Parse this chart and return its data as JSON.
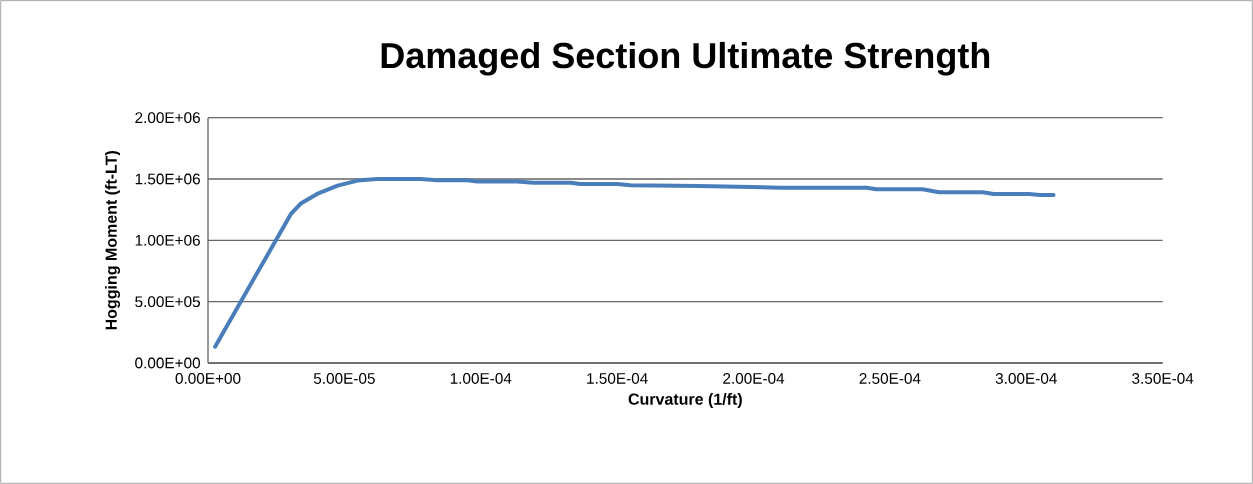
{
  "chart_data": {
    "type": "line",
    "title": "Damaged Section Ultimate Strength",
    "xlabel": "Curvature (1/ft)",
    "ylabel": "Hogging Moment (ft-LT)",
    "series": [
      {
        "color": "#4a7ebb",
        "x": [
          2.6e-06,
          3.04e-05,
          3.4e-05,
          4e-05,
          4.75e-05,
          5.48e-05,
          6.2e-05,
          7.8e-05,
          8.4e-05,
          9.5e-05,
          9.87e-05,
          0.0001133,
          0.0001194,
          0.0001329,
          0.0001365,
          0.00015,
          0.0001548,
          0.00018,
          0.0002097,
          0.0002415,
          0.000245,
          0.000262,
          0.000268,
          0.000284,
          0.000288,
          0.000301,
          0.000305,
          0.00031
        ],
        "values": [
          133000,
          1215000,
          1300000,
          1378000,
          1446000,
          1487000,
          1500000,
          1500000,
          1490000,
          1490000,
          1480000,
          1480000,
          1470000,
          1470000,
          1460000,
          1460000,
          1449000,
          1443000,
          1429000,
          1429000,
          1416000,
          1416000,
          1392000,
          1392000,
          1378000,
          1378000,
          1369000,
          1369000
        ]
      }
    ],
    "xlim": [
      0,
      0.00035
    ],
    "ylim": [
      0,
      2000000
    ],
    "xticks": [
      {
        "value": 0,
        "label": "0.00E+00"
      },
      {
        "value": 5e-05,
        "label": "5.00E-05"
      },
      {
        "value": 0.0001,
        "label": "1.00E-04"
      },
      {
        "value": 0.00015,
        "label": "1.50E-04"
      },
      {
        "value": 0.0002,
        "label": "2.00E-04"
      },
      {
        "value": 0.00025,
        "label": "2.50E-04"
      },
      {
        "value": 0.0003,
        "label": "3.00E-04"
      },
      {
        "value": 0.00035,
        "label": "3.50E-04"
      }
    ],
    "yticks": [
      {
        "value": 0,
        "label": "0.00E+00"
      },
      {
        "value": 500000,
        "label": "5.00E+05"
      },
      {
        "value": 1000000,
        "label": "1.00E+06"
      },
      {
        "value": 1500000,
        "label": "1.50E+06"
      },
      {
        "value": 2000000,
        "label": "2.00E+06"
      }
    ],
    "grid": "y",
    "marker": "none",
    "line_style": "solid"
  }
}
